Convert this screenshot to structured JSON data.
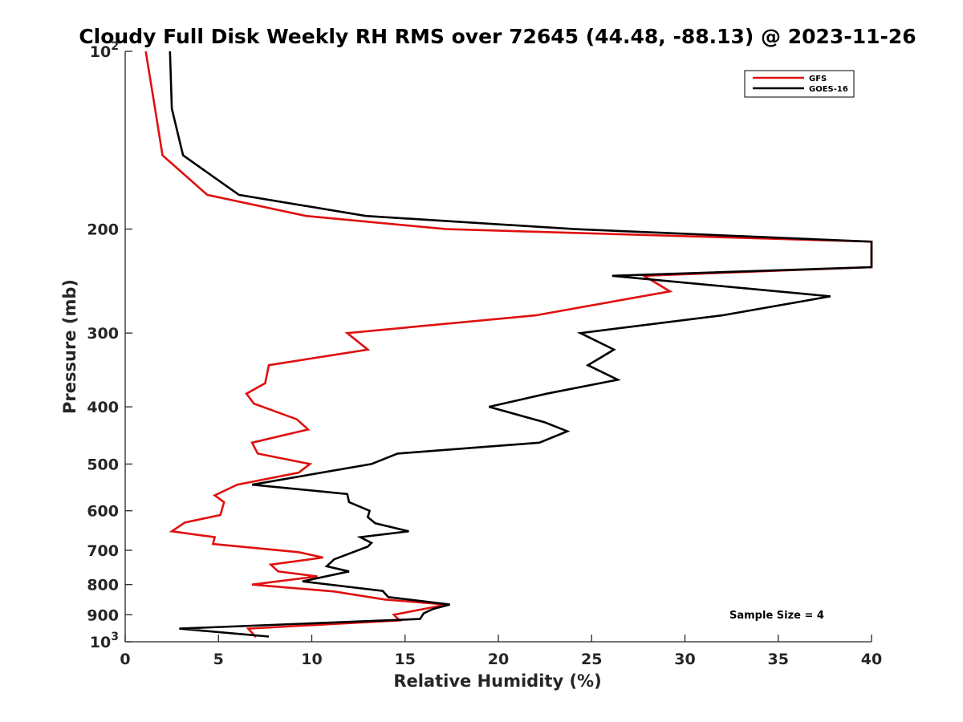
{
  "chart_data": {
    "type": "line",
    "title": "Cloudy Full Disk Weekly RH RMS over 72645 (44.48, -88.13) @ 2023-11-26",
    "xlabel": "Relative Humidity (%)",
    "ylabel": "Pressure (mb)",
    "xlim": [
      0,
      40
    ],
    "ylim": [
      100,
      1000
    ],
    "yscale": "log",
    "y_reversed": true,
    "grid": false,
    "legend_position": "top-right",
    "x_ticks": [
      {
        "value": 0,
        "label": "0"
      },
      {
        "value": 5,
        "label": "5"
      },
      {
        "value": 10,
        "label": "10"
      },
      {
        "value": 15,
        "label": "15"
      },
      {
        "value": 20,
        "label": "20"
      },
      {
        "value": 25,
        "label": "25"
      },
      {
        "value": 30,
        "label": "30"
      },
      {
        "value": 35,
        "label": "35"
      },
      {
        "value": 40,
        "label": "40"
      }
    ],
    "y_ticks": [
      {
        "value": 100,
        "base": "10",
        "exp": "2"
      },
      {
        "value": 200,
        "label": "200"
      },
      {
        "value": 300,
        "label": "300"
      },
      {
        "value": 400,
        "label": "400"
      },
      {
        "value": 500,
        "label": "500"
      },
      {
        "value": 600,
        "label": "600"
      },
      {
        "value": 700,
        "label": "700"
      },
      {
        "value": 800,
        "label": "800"
      },
      {
        "value": 900,
        "label": "900"
      },
      {
        "value": 1000,
        "base": "10",
        "exp": "3"
      }
    ],
    "series": [
      {
        "name": "GFS",
        "color": "#e01010",
        "points": [
          [
            1.1,
            100
          ],
          [
            1.6,
            125
          ],
          [
            2.0,
            150
          ],
          [
            4.4,
            175
          ],
          [
            9.7,
            190
          ],
          [
            17.2,
            200
          ],
          [
            40.0,
            210
          ],
          [
            40.0,
            232
          ],
          [
            27.8,
            240
          ],
          [
            29.2,
            255
          ],
          [
            22.0,
            280
          ],
          [
            11.9,
            300
          ],
          [
            13.0,
            320
          ],
          [
            7.7,
            340
          ],
          [
            7.5,
            365
          ],
          [
            6.5,
            380
          ],
          [
            6.9,
            395
          ],
          [
            9.2,
            420
          ],
          [
            9.8,
            437
          ],
          [
            6.8,
            460
          ],
          [
            7.1,
            480
          ],
          [
            9.9,
            500
          ],
          [
            9.3,
            517
          ],
          [
            6.0,
            542
          ],
          [
            4.8,
            565
          ],
          [
            5.3,
            580
          ],
          [
            5.1,
            610
          ],
          [
            3.2,
            628
          ],
          [
            2.5,
            650
          ],
          [
            4.8,
            665
          ],
          [
            4.7,
            683
          ],
          [
            9.3,
            705
          ],
          [
            10.6,
            720
          ],
          [
            7.8,
            740
          ],
          [
            8.2,
            760
          ],
          [
            10.3,
            775
          ],
          [
            6.8,
            800
          ],
          [
            11.2,
            822
          ],
          [
            13.9,
            848
          ],
          [
            17.2,
            865
          ],
          [
            16.0,
            880
          ],
          [
            14.4,
            900
          ],
          [
            14.7,
            920
          ],
          [
            6.6,
            950
          ],
          [
            7.0,
            982
          ]
        ]
      },
      {
        "name": "GOES-16",
        "color": "#000000",
        "points": [
          [
            2.4,
            100
          ],
          [
            2.5,
            125
          ],
          [
            3.1,
            150
          ],
          [
            6.1,
            175
          ],
          [
            12.9,
            190
          ],
          [
            24.1,
            200
          ],
          [
            40.0,
            210
          ],
          [
            40.0,
            232
          ],
          [
            26.1,
            240
          ],
          [
            37.8,
            260
          ],
          [
            32.0,
            280
          ],
          [
            24.4,
            300
          ],
          [
            26.2,
            320
          ],
          [
            24.8,
            340
          ],
          [
            26.4,
            360
          ],
          [
            22.6,
            380
          ],
          [
            19.5,
            400
          ],
          [
            22.5,
            425
          ],
          [
            23.7,
            440
          ],
          [
            22.2,
            460
          ],
          [
            14.6,
            480
          ],
          [
            13.2,
            500
          ],
          [
            6.8,
            542
          ],
          [
            11.9,
            562
          ],
          [
            12.0,
            580
          ],
          [
            13.1,
            600
          ],
          [
            13.0,
            615
          ],
          [
            13.4,
            630
          ],
          [
            15.2,
            650
          ],
          [
            12.6,
            665
          ],
          [
            13.2,
            680
          ],
          [
            13.0,
            690
          ],
          [
            11.2,
            725
          ],
          [
            10.8,
            745
          ],
          [
            12.0,
            760
          ],
          [
            9.5,
            790
          ],
          [
            13.8,
            820
          ],
          [
            14.1,
            840
          ],
          [
            17.4,
            865
          ],
          [
            16.5,
            880
          ],
          [
            16.0,
            895
          ],
          [
            15.8,
            915
          ],
          [
            2.9,
            950
          ],
          [
            7.7,
            980
          ]
        ]
      }
    ],
    "annotations": [
      {
        "text": "Sample Size = 4"
      }
    ]
  }
}
